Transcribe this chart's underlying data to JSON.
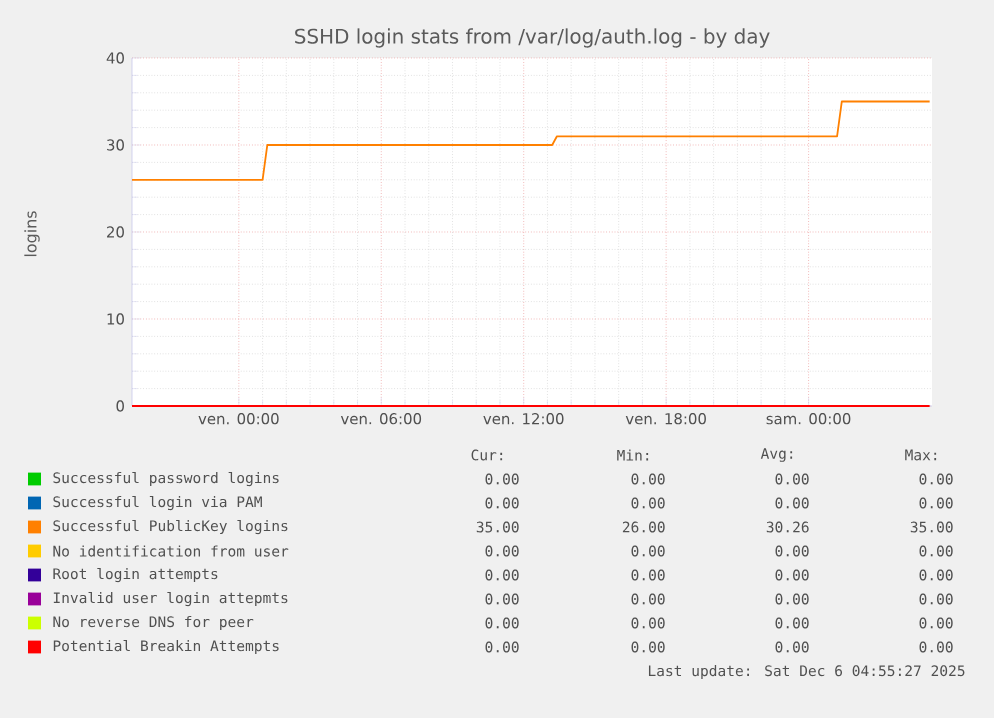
{
  "chart_data": {
    "type": "line",
    "title": "SSHD login stats from /var/log/auth.log - by day",
    "ylabel": "logins",
    "xlim": [
      "2025-12-04T19:30",
      "2025-12-06T05:12"
    ],
    "ylim": [
      0,
      40
    ],
    "yticks": [
      0,
      10,
      20,
      30,
      40
    ],
    "xticks": [
      {
        "value": "2025-12-05T00:00",
        "label": "ven. 00:00"
      },
      {
        "value": "2025-12-05T06:00",
        "label": "ven. 06:00"
      },
      {
        "value": "2025-12-05T12:00",
        "label": "ven. 12:00"
      },
      {
        "value": "2025-12-05T18:00",
        "label": "ven. 18:00"
      },
      {
        "value": "2025-12-06T00:00",
        "label": "sam. 00:00"
      }
    ],
    "grid": true,
    "legend": "bottom",
    "series": [
      {
        "name": "Successful password logins",
        "color": "#00cc00",
        "values": [
          null
        ]
      },
      {
        "name": "Successful login via PAM",
        "color": "#0066b3",
        "values": [
          null
        ]
      },
      {
        "name": "Successful PublicKey logins",
        "color": "#ff8000",
        "x": [
          "2025-12-04T19:30",
          "2025-12-05T01:00",
          "2025-12-05T01:12",
          "2025-12-05T13:12",
          "2025-12-05T13:24",
          "2025-12-06T01:12",
          "2025-12-06T01:24",
          "2025-12-06T05:06"
        ],
        "values": [
          26,
          26,
          30,
          30,
          31,
          31,
          35,
          35
        ]
      },
      {
        "name": "No identification from user",
        "color": "#ffcc00",
        "values": [
          null
        ]
      },
      {
        "name": "Root login attempts",
        "color": "#330099",
        "values": [
          null
        ]
      },
      {
        "name": "Invalid user login attepmts",
        "color": "#990099",
        "values": [
          null
        ]
      },
      {
        "name": "No reverse DNS for peer",
        "color": "#ccff00",
        "values": [
          null
        ]
      },
      {
        "name": "Potential Breakin Attempts",
        "color": "#ff0000",
        "x": [
          "2025-12-04T19:30",
          "2025-12-06T05:06"
        ],
        "values": [
          0,
          0
        ]
      }
    ],
    "annotations": [
      "Cur:",
      "Min:",
      "Avg:",
      "Max:",
      "0.00",
      "0.00",
      "0.00",
      "0.00",
      "0.00",
      "0.00",
      "0.00",
      "0.00",
      "35.00",
      "26.00",
      "30.26",
      "35.00",
      "0.00",
      "0.00",
      "0.00",
      "0.00",
      "0.00",
      "0.00",
      "0.00",
      "0.00",
      "0.00",
      "0.00",
      "0.00",
      "0.00",
      "0.00",
      "0.00",
      "0.00",
      "0.00",
      "0.00",
      "0.00",
      "0.00",
      "0.00",
      "Last update: Sat Dec  6 04:55:27 2025"
    ]
  }
}
